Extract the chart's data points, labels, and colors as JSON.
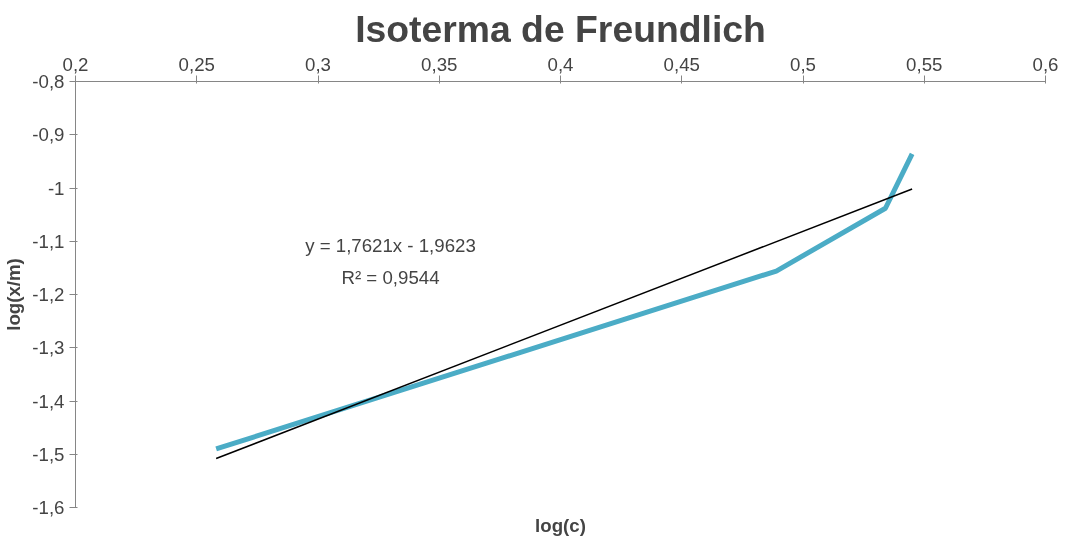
{
  "chart_data": {
    "type": "line",
    "title": "Isoterma de Freundlich",
    "xlabel": "log(c)",
    "ylabel": "log(x/m)",
    "x": [
      0.258,
      0.489,
      0.534,
      0.545
    ],
    "series": [
      {
        "color": "#4bacc6",
        "values": [
          -1.49,
          -1.156,
          -1.038,
          -0.936
        ]
      },
      {
        "type": "line",
        "color": "#000000",
        "x": [
          0.258,
          0.545
        ],
        "values": [
          -1.508,
          -1.002
        ]
      }
    ],
    "xlim": [
      0.2,
      0.6
    ],
    "xticks": [
      {
        "value": 0.2,
        "label": "0,2"
      },
      {
        "value": 0.25,
        "label": "0,25"
      },
      {
        "value": 0.3,
        "label": "0,3"
      },
      {
        "value": 0.35,
        "label": "0,35"
      },
      {
        "value": 0.4,
        "label": "0,4"
      },
      {
        "value": 0.45,
        "label": "0,45"
      },
      {
        "value": 0.5,
        "label": "0,5"
      },
      {
        "value": 0.55,
        "label": "0,55"
      },
      {
        "value": 0.6,
        "label": "0,6"
      }
    ],
    "ylim": [
      -1.6,
      -0.8
    ],
    "yticks": [
      {
        "value": -1.6,
        "label": "-1,6"
      },
      {
        "value": -1.5,
        "label": "-1,5"
      },
      {
        "value": -1.4,
        "label": "-1,4"
      },
      {
        "value": -1.3,
        "label": "-1,3"
      },
      {
        "value": -1.2,
        "label": "-1,2"
      },
      {
        "value": -1.1,
        "label": "-1,1"
      },
      -1,
      {
        "value": -0.9,
        "label": "-0,9"
      },
      {
        "value": -0.8,
        "label": "-0,8"
      }
    ],
    "annotations": [
      "y = 1,7621x - 1,9623",
      "R² = 0,9544"
    ],
    "grid": false,
    "marker": "none"
  }
}
